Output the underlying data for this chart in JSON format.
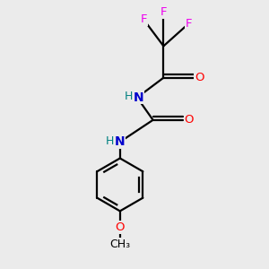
{
  "background_color": "#ebebeb",
  "atom_colors": {
    "C": "#000000",
    "N": "#0000cc",
    "O": "#ff0000",
    "F": "#ee00ee",
    "H": "#008080"
  },
  "figsize": [
    3.0,
    3.0
  ],
  "dpi": 100
}
